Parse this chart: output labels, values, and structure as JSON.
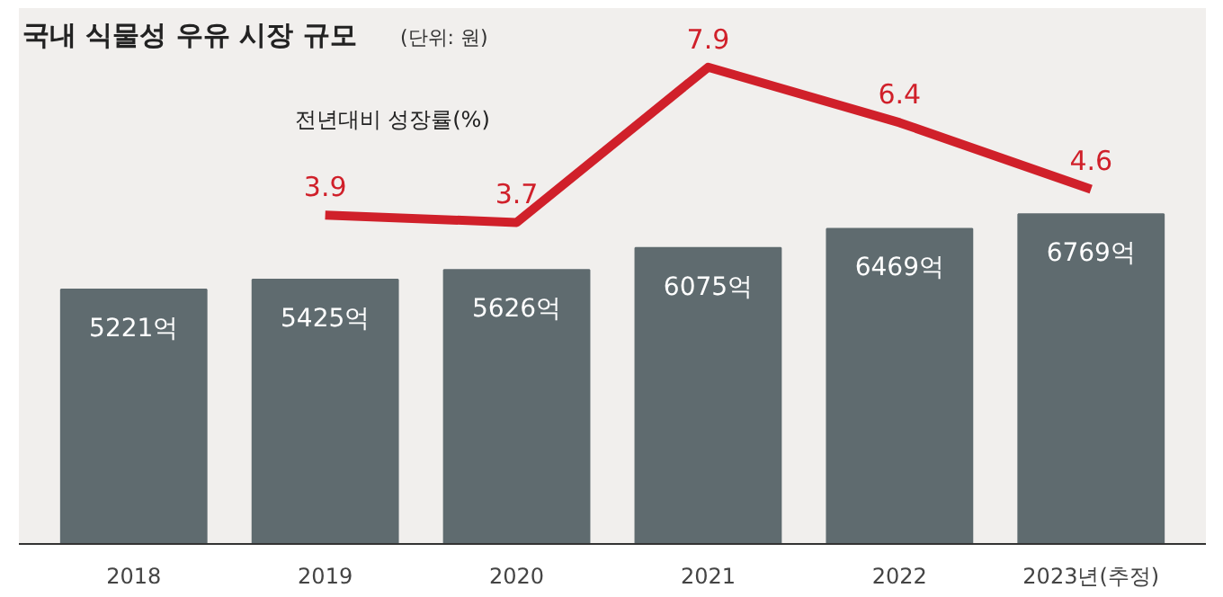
{
  "chart_data": {
    "type": "bar",
    "title": "국내 식물성 우유 시장 규모",
    "subtitle": "(단위: 원)",
    "categories": [
      "2018",
      "2019",
      "2020",
      "2021",
      "2022",
      "2023년(추정)"
    ],
    "legend": false,
    "grid": false,
    "ylim": [
      0,
      11000
    ],
    "y2lim": [
      -5,
      9.5
    ],
    "series": [
      {
        "color": "#5f6b6f",
        "values": [
          5221,
          5425,
          5626,
          6075,
          6469,
          6769
        ],
        "value_labels": [
          "5221억",
          "5425억",
          "5626억",
          "6075억",
          "6469억",
          "6769억"
        ]
      },
      {
        "type": "line",
        "name": "전년대비 성장률(%)",
        "axis": "y2",
        "color": "#d0202a",
        "values": [
          null,
          3.9,
          3.7,
          7.9,
          6.4,
          4.6
        ],
        "value_labels": [
          null,
          "3.9",
          "3.7",
          "7.9",
          "6.4",
          "4.6"
        ]
      }
    ]
  }
}
